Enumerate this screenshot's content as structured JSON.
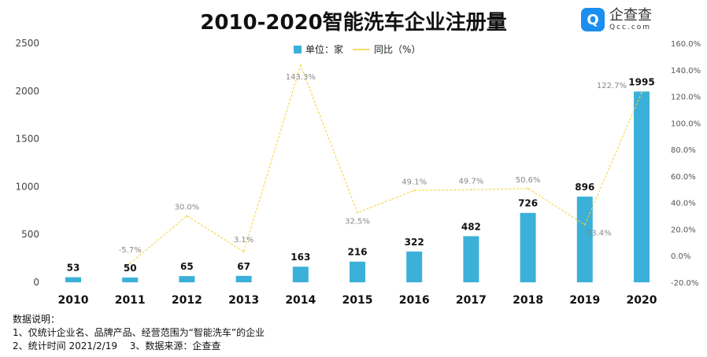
{
  "chart_data": {
    "type": "bar",
    "title": "2010-2020智能洗车企业注册量",
    "categories": [
      "2010",
      "2011",
      "2012",
      "2013",
      "2014",
      "2015",
      "2016",
      "2017",
      "2018",
      "2019",
      "2020"
    ],
    "series": [
      {
        "name": "单位：家",
        "type": "bar",
        "axis": "left",
        "values": [
          53,
          50,
          65,
          67,
          163,
          216,
          322,
          482,
          726,
          896,
          1995
        ],
        "color": "#3bb0d8"
      },
      {
        "name": "同比（%）",
        "type": "line",
        "axis": "right",
        "values": [
          null,
          -5.7,
          30.0,
          3.1,
          143.3,
          32.5,
          49.1,
          49.7,
          50.6,
          23.4,
          122.7
        ],
        "labels": [
          "",
          "-5.7%",
          "30.0%",
          "3.1%",
          "143.3%",
          "32.5%",
          "49.1%",
          "49.7%",
          "50.6%",
          "23.4%",
          "122.7%"
        ],
        "color": "#f5d130"
      }
    ],
    "ylim": [
      0,
      2500
    ],
    "yticks": [
      "0",
      "500",
      "1000",
      "1500",
      "2000",
      "2500"
    ],
    "y2lim": [
      -20,
      160
    ],
    "y2ticks": [
      "-20.0%",
      "0.0%",
      "20.0%",
      "40.0%",
      "60.0%",
      "80.0%",
      "100.0%",
      "120.0%",
      "140.0%",
      "160.0%"
    ],
    "legend": "top-center",
    "grid": false
  },
  "logo": {
    "icon": "Q",
    "name": "企查查",
    "domain": "Qcc.com"
  },
  "notes": [
    "数据说明：",
    "1、仅统计企业名、品牌产品、经营范围为“智能洗车”的企业",
    "2、统计时间 2021/2/19　 3、数据来源：企查查"
  ]
}
